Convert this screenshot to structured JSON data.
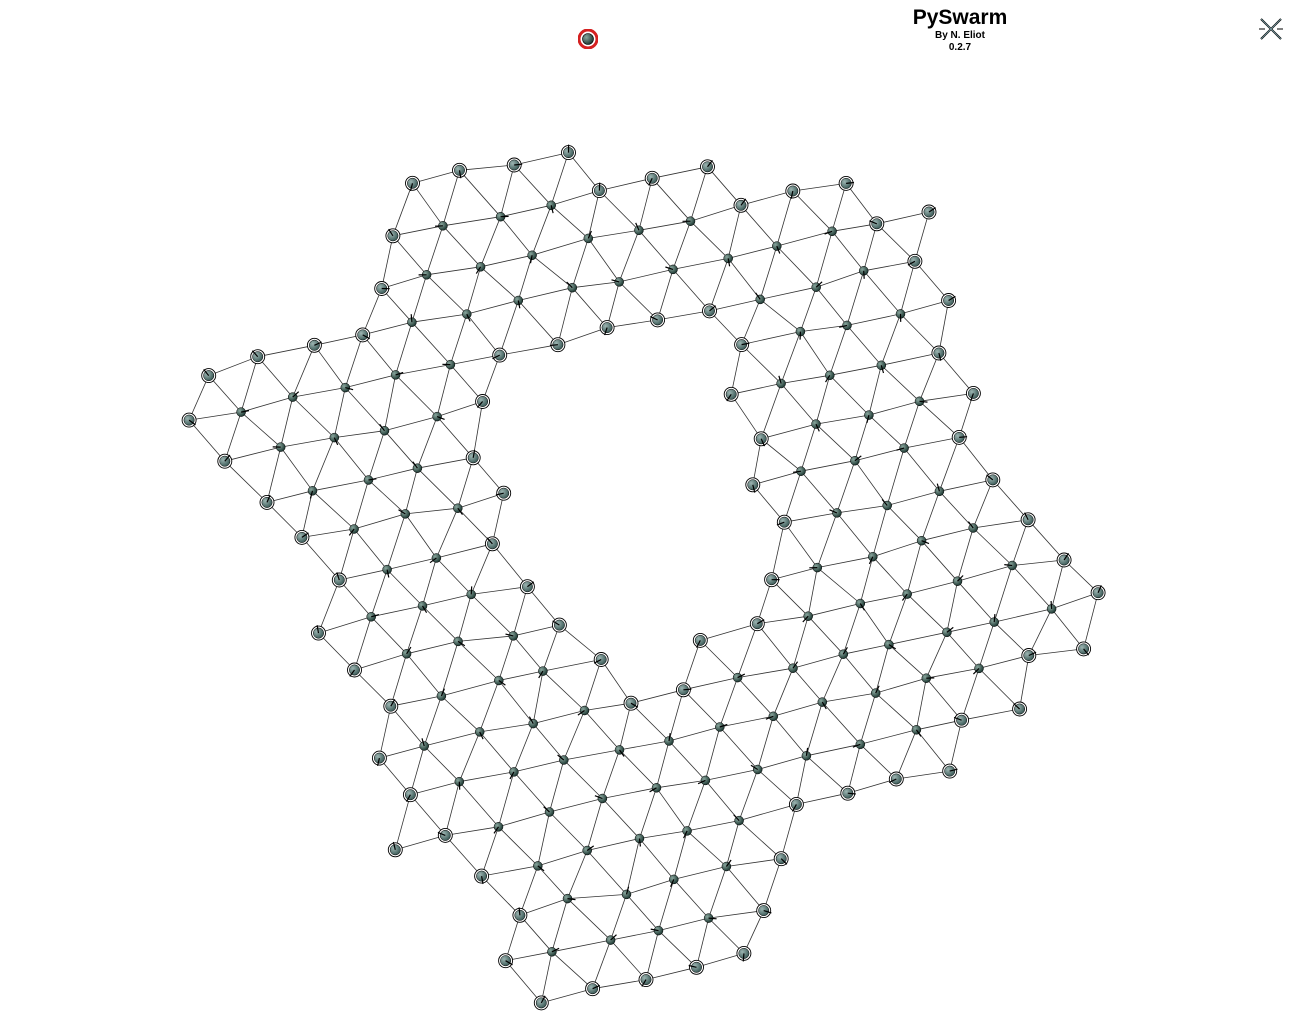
{
  "header": {
    "title": "PySwarm",
    "author": "By N. Eliot",
    "version": "0.2.7"
  },
  "icons": {
    "close": "close-x-icon",
    "leader": "leader-agent-icon"
  },
  "colors": {
    "background": "#ffffff",
    "agent_fill": "#1f3a34",
    "agent_highlight": "#8aa79e",
    "boundary_fill": "#5b7a77",
    "edge": "#333333",
    "leader_ring": "#d42020"
  },
  "swarm": {
    "agent_count": 310,
    "description_shape": "ring"
  }
}
